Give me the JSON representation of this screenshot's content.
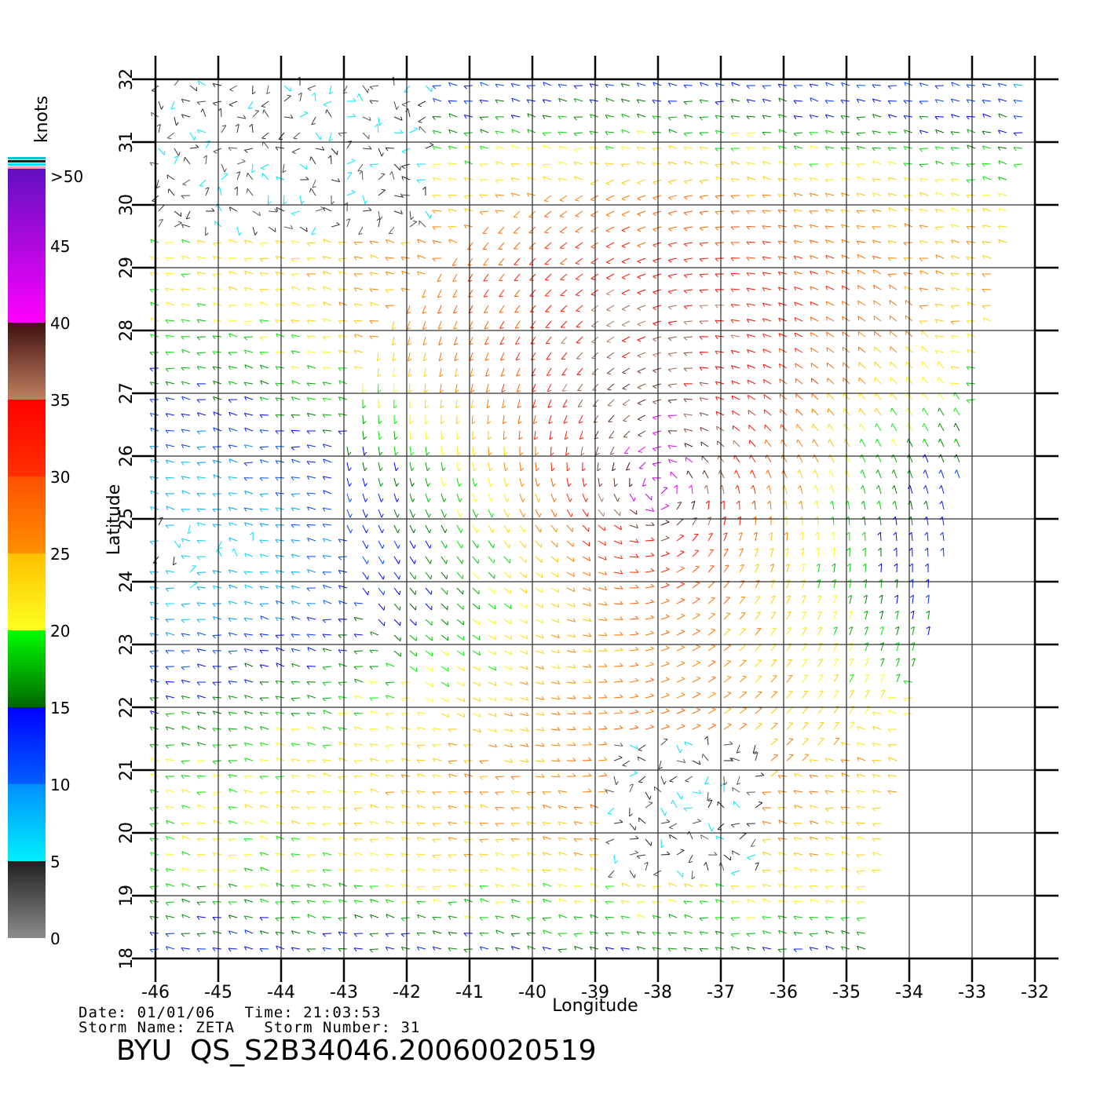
{
  "chart_data": {
    "type": "wind-vector-map",
    "xlabel": "Longitude",
    "ylabel": "Latitude",
    "xlim": [
      -46,
      -32
    ],
    "ylim": [
      18,
      32
    ],
    "x_ticks": [
      "-46",
      "-45",
      "-44",
      "-43",
      "-42",
      "-41",
      "-40",
      "-39",
      "-38",
      "-37",
      "-36",
      "-35",
      "-34",
      "-33",
      "-32"
    ],
    "y_ticks": [
      "18",
      "19",
      "20",
      "21",
      "22",
      "23",
      "24",
      "25",
      "26",
      "27",
      "28",
      "29",
      "30",
      "31",
      "32"
    ],
    "grid": true,
    "storm_center": {
      "lon": -38,
      "lat": 25.5
    },
    "colorbar": {
      "unit": "knots",
      "top_label": ">50",
      "labels": [
        "0",
        "5",
        "10",
        "15",
        "20",
        "25",
        "30",
        "35",
        "40",
        "45"
      ],
      "bands": [
        {
          "min": 0,
          "max": 5,
          "from": "#8c8c8c",
          "to": "#202020"
        },
        {
          "min": 5,
          "max": 10,
          "from": "#00f0ff",
          "to": "#0090ff"
        },
        {
          "min": 10,
          "max": 15,
          "from": "#0060ff",
          "to": "#0000ff"
        },
        {
          "min": 15,
          "max": 20,
          "from": "#006600",
          "to": "#00ff00"
        },
        {
          "min": 20,
          "max": 25,
          "from": "#ffff20",
          "to": "#ffc000"
        },
        {
          "min": 25,
          "max": 30,
          "from": "#ff9000",
          "to": "#ff5000"
        },
        {
          "min": 30,
          "max": 35,
          "from": "#ff3000",
          "to": "#ff0000"
        },
        {
          "min": 35,
          "max": 40,
          "from": "#c08060",
          "to": "#401010"
        },
        {
          "min": 40,
          "max": 50,
          "from": "#ff00ff",
          "to": "#6010c0"
        }
      ]
    }
  },
  "footer": {
    "date_line": "Date: 01/01/06   Time: 21:03:53",
    "storm_line": "Storm Name: ZETA   Storm Number: 31",
    "file_line": "BYU  QS_S2B34046.20060020519"
  }
}
